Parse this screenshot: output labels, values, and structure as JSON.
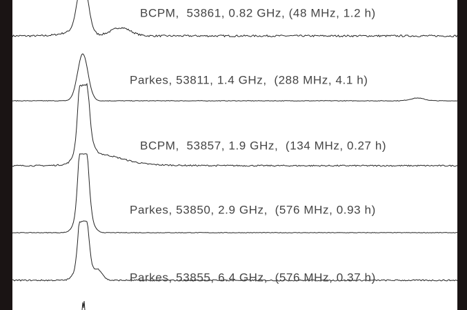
{
  "panels": [
    {
      "label": "BCPM,  53861, 0.82 GHz, (48 MHz, 1.2 h)"
    },
    {
      "label": "Parkes, 53811, 1.4 GHz,  (288 MHz, 4.1 h)"
    },
    {
      "label": "BCPM,  53857, 1.9 GHz,  (134 MHz, 0.27 h)"
    },
    {
      "label": "Parkes, 53850, 2.9 GHz,  (576 MHz, 0.93 h)"
    },
    {
      "label": "Parkes, 53855, 6.4 GHz,  (576 MHz, 0.37 h)"
    }
  ]
}
